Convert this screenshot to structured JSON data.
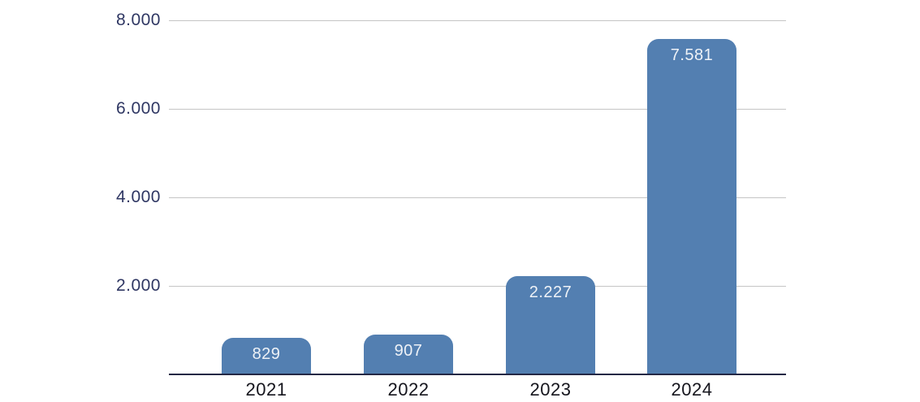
{
  "chart_data": {
    "type": "bar",
    "title": "",
    "xlabel": "",
    "ylabel": "",
    "categories": [
      "2021",
      "2022",
      "2023",
      "2024"
    ],
    "values": [
      829,
      907,
      2227,
      7581
    ],
    "value_labels": [
      "829",
      "907",
      "2.227",
      "7.581"
    ],
    "ylim": [
      0,
      8000
    ],
    "yticks": [
      2000,
      4000,
      6000,
      8000
    ],
    "ytick_labels": [
      "2.000",
      "4.000",
      "6.000",
      "8.000"
    ],
    "grid": true,
    "legend": false,
    "number_format": "thousands-dot",
    "colors": {
      "bar": "#537fb1",
      "bar_label": "#eef2f7",
      "gridline": "#c5c5c5",
      "axis_line": "#232845",
      "ytick_text": "#2f3763",
      "xtick_text": "#15151d",
      "background": "#ffffff"
    }
  }
}
